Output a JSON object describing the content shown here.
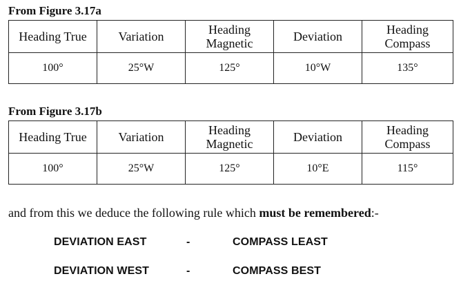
{
  "table_a": {
    "caption": "From Figure 3.17a",
    "headers": [
      "Heading True",
      "Variation",
      "Heading\nMagnetic",
      "Deviation",
      "Heading\nCompass"
    ],
    "row": [
      "100°",
      "25°W",
      "125°",
      "10°W",
      "135°"
    ]
  },
  "table_b": {
    "caption": "From Figure 3.17b",
    "headers": [
      "Heading True",
      "Variation",
      "Heading\nMagnetic",
      "Deviation",
      "Heading\nCompass"
    ],
    "row": [
      "100°",
      "25°W",
      "125°",
      "10°E",
      "115°"
    ]
  },
  "sentence": {
    "before": "and from this we deduce the following rule which ",
    "emphasis": "must be remembered",
    "after": ":-"
  },
  "rules": [
    {
      "left": "DEVIATION EAST",
      "dash": "-",
      "right": "COMPASS LEAST"
    },
    {
      "left": "DEVIATION WEST",
      "dash": "-",
      "right": "COMPASS BEST"
    }
  ]
}
